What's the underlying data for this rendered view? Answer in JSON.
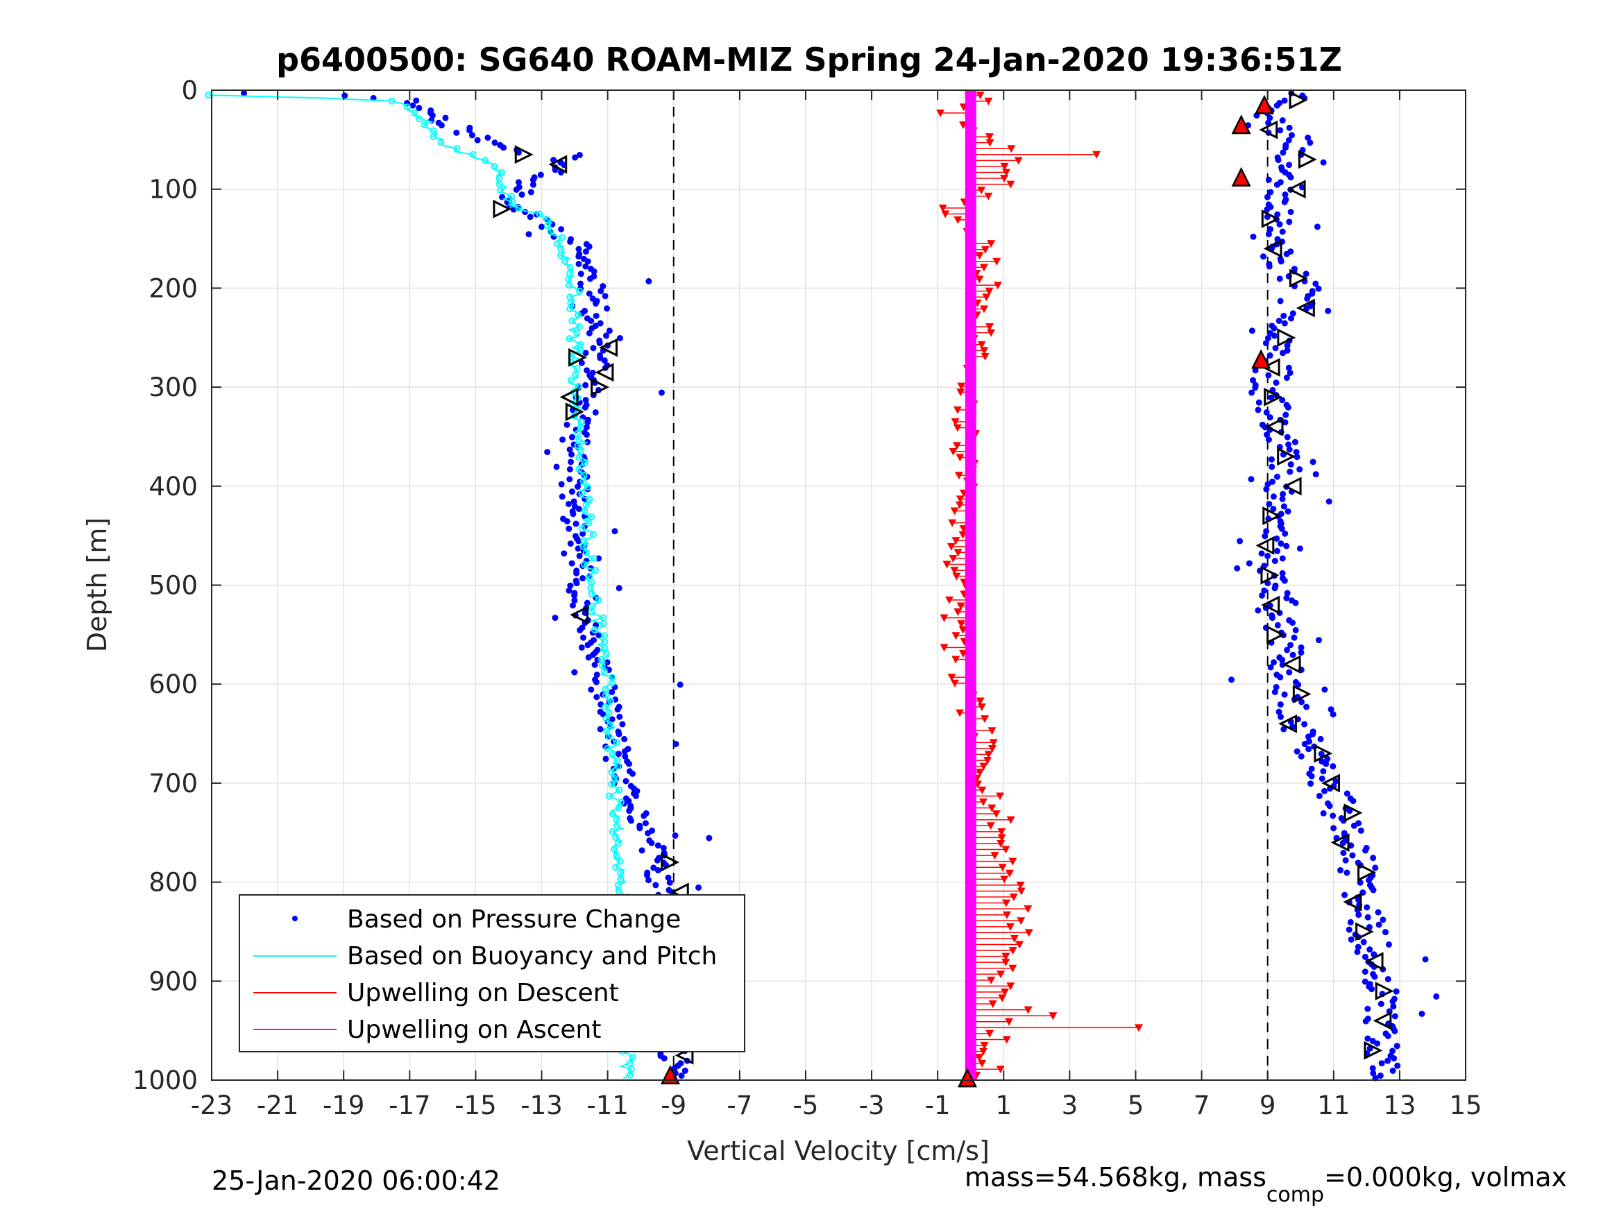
{
  "chart_data": {
    "type": "scatter",
    "title": "p6400500: SG640 ROAM-MIZ Spring 24-Jan-2020 19:36:51Z",
    "xlabel": "Vertical Velocity [cm/s]",
    "ylabel": "Depth [m]",
    "xlim": [
      -23,
      15
    ],
    "ylim": [
      1000,
      0
    ],
    "y_reversed": true,
    "xticks": [
      -23,
      -21,
      -19,
      -17,
      -15,
      -13,
      -11,
      -9,
      -7,
      -5,
      -3,
      -1,
      1,
      3,
      5,
      7,
      9,
      11,
      13,
      15
    ],
    "yticks": [
      0,
      100,
      200,
      300,
      400,
      500,
      600,
      700,
      800,
      900,
      1000
    ],
    "grid": true,
    "legend_position": "bottom-left",
    "reference_lines": [
      -9,
      9
    ],
    "colors": {
      "pressure": "#0000ff",
      "buoyancy": "#00ffff",
      "upwelling_descent": "#ff0000",
      "upwelling_ascent": "#ff00ff"
    },
    "legend": [
      "Based on Pressure Change",
      "Based on Buoyancy and Pitch",
      "Upwelling on Descent",
      "Upwelling on Ascent"
    ],
    "series": [
      {
        "name": "Based on Pressure Change",
        "profile": "descent",
        "depth": [
          2,
          10,
          30,
          55,
          75,
          95,
          115,
          130,
          160,
          200,
          250,
          300,
          350,
          400,
          450,
          500,
          550,
          600,
          650,
          700,
          750,
          800,
          850,
          900,
          950,
          1000
        ],
        "velocity": [
          -22.5,
          -17,
          -16,
          -14.5,
          -12,
          -13.5,
          -14,
          -13,
          -11.8,
          -11.5,
          -11.3,
          -11.5,
          -12,
          -12,
          -12,
          -11.8,
          -11.6,
          -11.2,
          -10.8,
          -10.6,
          -9.8,
          -9.4,
          -9.2,
          -9.2,
          -9.0,
          -9.0
        ]
      },
      {
        "name": "Based on Buoyancy and Pitch",
        "profile": "descent",
        "depth": [
          5,
          10,
          30,
          55,
          75,
          95,
          115,
          130,
          160,
          200,
          250,
          300,
          350,
          400,
          450,
          500,
          550,
          600,
          650,
          700,
          750,
          800,
          850,
          900,
          950,
          1000
        ],
        "velocity": [
          -23,
          -17.5,
          -16.5,
          -16,
          -14.5,
          -14.2,
          -14,
          -12.8,
          -12.3,
          -12,
          -12,
          -12,
          -11.8,
          -11.7,
          -11.6,
          -11.5,
          -11.2,
          -11,
          -10.9,
          -10.8,
          -10.7,
          -10.6,
          -10.5,
          -10.4,
          -10.3,
          -10.5
        ]
      },
      {
        "name": "Based on Pressure Change",
        "profile": "ascent",
        "depth": [
          5,
          30,
          60,
          90,
          120,
          150,
          200,
          250,
          300,
          350,
          400,
          450,
          500,
          550,
          600,
          650,
          700,
          750,
          800,
          850,
          900,
          950,
          1000
        ],
        "velocity": [
          10,
          9,
          10,
          9.5,
          9.5,
          9,
          10,
          9.5,
          9,
          9.5,
          9.5,
          9.2,
          9.2,
          9.5,
          9.7,
          10,
          10.8,
          11.5,
          11.8,
          12,
          12.5,
          12.5,
          12.5
        ]
      },
      {
        "name": "Upwelling on Descent",
        "depth": [
          10,
          30,
          60,
          90,
          120,
          150,
          200,
          250,
          300,
          350,
          400,
          450,
          500,
          550,
          600,
          650,
          700,
          750,
          800,
          850,
          900,
          950,
          1000
        ],
        "velocity": [
          0.5,
          -0.5,
          1,
          1.5,
          -0.8,
          0.3,
          0.5,
          0.4,
          -0.3,
          -0.2,
          -0.1,
          -0.4,
          -0.4,
          -0.5,
          -0.3,
          0.3,
          0.6,
          0.9,
          1.3,
          1.5,
          1.0,
          0.8,
          0.5
        ]
      },
      {
        "name": "Upwelling on Ascent",
        "depth": [
          0,
          1000
        ],
        "velocity": [
          0,
          0
        ]
      }
    ],
    "footer_left": "25-Jan-2020 06:00:42",
    "footer_right": "mass=54.568kg, mass",
    "footer_right_sub": "comp",
    "footer_right_tail": "=0.000kg, volmax"
  }
}
